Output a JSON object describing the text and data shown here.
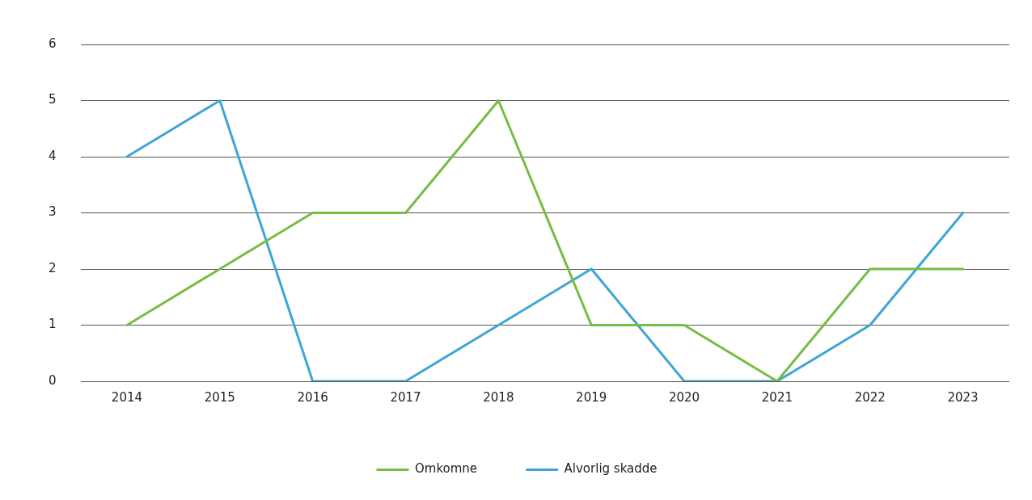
{
  "chart_data": {
    "type": "line",
    "categories": [
      "2014",
      "2015",
      "2016",
      "2017",
      "2018",
      "2019",
      "2020",
      "2021",
      "2022",
      "2023"
    ],
    "series": [
      {
        "name": "Omkomne",
        "color": "#77bc43",
        "values": [
          1,
          2,
          3,
          3,
          5,
          1,
          1,
          0,
          2,
          2
        ]
      },
      {
        "name": "Alvorlig skadde",
        "color": "#40a4d8",
        "values": [
          4,
          5,
          0,
          0,
          1,
          2,
          0,
          0,
          1,
          3
        ]
      }
    ],
    "ylim": [
      0,
      6
    ],
    "yticks": [
      0,
      1,
      2,
      3,
      4,
      5,
      6
    ],
    "grid": "y",
    "legend": "bottom",
    "marker": "none",
    "line_style": "solid"
  }
}
